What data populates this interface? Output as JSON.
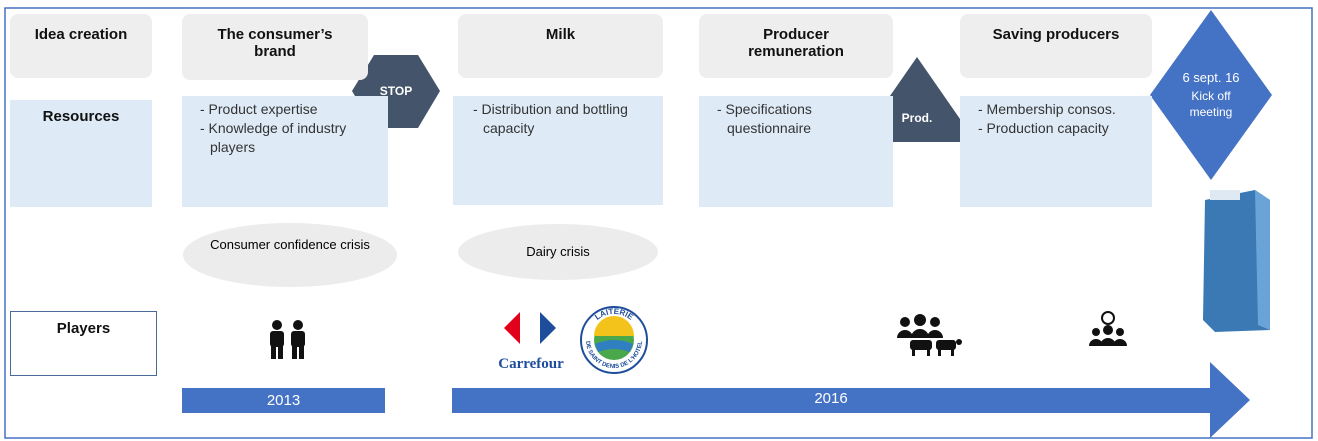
{
  "rows": {
    "idea": "Idea creation",
    "resources": "Resources",
    "players": "Players"
  },
  "stages": [
    {
      "title": "The consumer’s brand",
      "resources": [
        "- Product expertise",
        "- Knowledge  of industry players"
      ]
    },
    {
      "title": "Milk",
      "resources": [
        "- Distribution and bottling capacity"
      ]
    },
    {
      "title": "Producer remuneration",
      "resources": [
        "- Specifications questionnaire"
      ]
    },
    {
      "title": "Saving producers",
      "resources": [
        "- Membership consos.",
        "- Production capacity"
      ]
    }
  ],
  "markers": {
    "stop": "STOP",
    "prod": "Prod.",
    "date": "6 sept. 16",
    "event": "Kick off meeting"
  },
  "crises": [
    "Consumer confidence crisis",
    "Dairy crisis"
  ],
  "logos": {
    "carrefour": "Carrefour",
    "laiterie_top": "LAITERIE",
    "laiterie_bottom": "DE SAINT DENIS DE L'HOTEL"
  },
  "timeline": [
    "2013",
    "2016"
  ]
}
